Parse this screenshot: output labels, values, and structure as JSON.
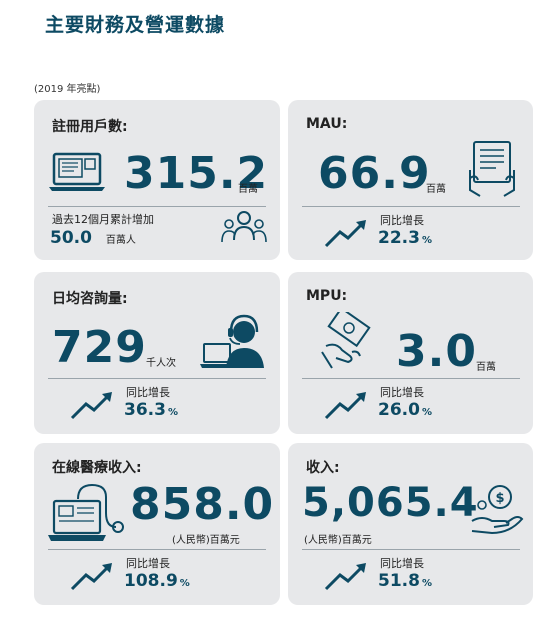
{
  "page": {
    "title": "主要財務及營運數據",
    "subtitle": "(2019 年亮點)"
  },
  "cards": {
    "registered_users": {
      "label": "註冊用戶數:",
      "value": "315.2",
      "unit": "百萬",
      "sub_label": "過去12個月累計增加",
      "sub_value": "50.0",
      "sub_unit": "百萬人"
    },
    "mau": {
      "label": "MAU:",
      "value": "66.9",
      "unit": "百萬",
      "growth_label": "同比增長",
      "growth_value": "22.3",
      "growth_unit": "%"
    },
    "daily_consultations": {
      "label": "日均咨詢量:",
      "value": "729",
      "unit": "千人次",
      "growth_label": "同比增長",
      "growth_value": "36.3",
      "growth_unit": "%"
    },
    "mpu": {
      "label": "MPU:",
      "value": "3.0",
      "unit": "百萬",
      "growth_label": "同比增長",
      "growth_value": "26.0",
      "growth_unit": "%"
    },
    "online_medical_revenue": {
      "label": "在線醫療收入:",
      "value": "858.0",
      "unit": "(人民幣)百萬元",
      "growth_label": "同比增長",
      "growth_value": "108.9",
      "growth_unit": "%"
    },
    "revenue": {
      "label": "收入:",
      "value": "5,065.4",
      "unit": "(人民幣)百萬元",
      "growth_label": "同比增長",
      "growth_value": "51.8",
      "growth_unit": "%"
    }
  },
  "colors": {
    "accent": "#0d4a63",
    "card_bg": "#e7e8ea"
  },
  "icons": {
    "registered_users": "laptop-icon",
    "registered_users_sub": "people-group-icon",
    "mau": "tablet-hands-icon",
    "daily_consultations": "headset-agent-icon",
    "mpu": "hand-money-icon",
    "online_medical_revenue": "computer-stethoscope-icon",
    "revenue": "hand-coins-icon",
    "growth": "trend-up-arrow-icon"
  }
}
